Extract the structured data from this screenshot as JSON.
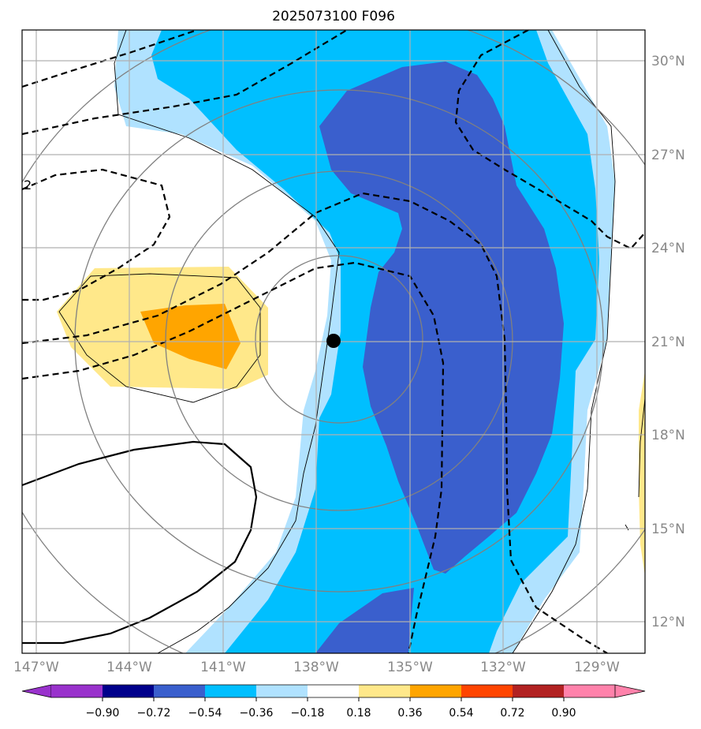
{
  "title": "2025073100 F096",
  "map": {
    "lon_ticks": [
      "147°W",
      "144°W",
      "141°W",
      "138°W",
      "135°W",
      "132°W",
      "129°W"
    ],
    "lat_ticks": [
      "30°N",
      "27°N",
      "24°N",
      "21°N",
      "18°N",
      "15°N",
      "12°N"
    ],
    "lon_range": [
      -147.5,
      -127.5
    ],
    "lat_range": [
      11.0,
      31.0
    ],
    "contour_label": "2",
    "storm_center": {
      "lon": -137.7,
      "lat": 21.0
    }
  },
  "colorbar": {
    "labels": [
      "−0.90",
      "−0.72",
      "−0.54",
      "−0.36",
      "−0.18",
      "0.18",
      "0.36",
      "0.54",
      "0.72",
      "0.90"
    ],
    "colors": [
      "#9932cc",
      "#00008b",
      "#3a5fcd",
      "#00bfff",
      "#b0e2ff",
      "#ffffff",
      "#ffe88a",
      "#ffa500",
      "#ff4500",
      "#b22222",
      "#ff82ab"
    ]
  }
}
